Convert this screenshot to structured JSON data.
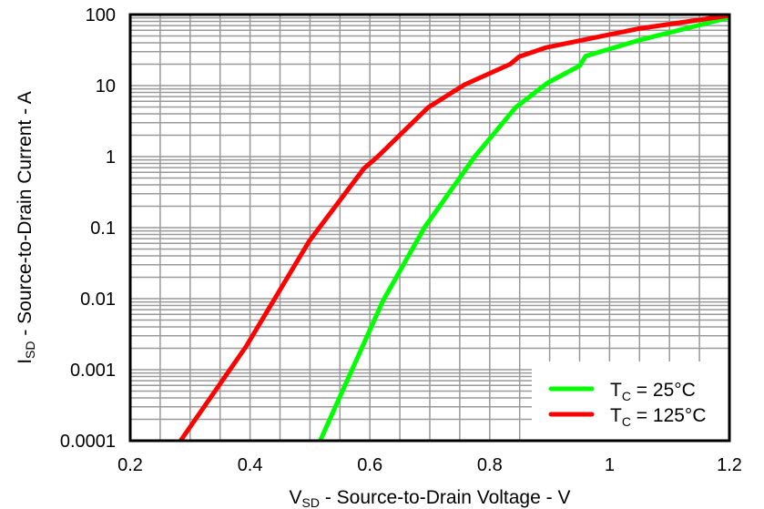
{
  "chart_data": {
    "type": "line",
    "title": "",
    "xlabel": {
      "main": "V",
      "sub": "SD",
      "rest": " - Source-to-Drain Voltage - V"
    },
    "ylabel": {
      "main": "I",
      "sub": "SD",
      "rest": " - Source-to-Drain Current - A"
    },
    "xlim": [
      0.2,
      1.2
    ],
    "ylim": [
      0.0001,
      100
    ],
    "yscale": "log",
    "grid": true,
    "legend_position": "bottom-right",
    "x_ticks": [
      "0.2",
      "0.4",
      "0.6",
      "0.8",
      "1",
      "1.2"
    ],
    "x_tick_values": [
      0.2,
      0.4,
      0.6,
      0.8,
      1.0,
      1.2
    ],
    "y_ticks": [
      "100",
      "10",
      "1",
      "0.1",
      "0.01",
      "0.001",
      "0.0001"
    ],
    "y_tick_values": [
      100,
      10,
      1,
      0.1,
      0.01,
      0.001,
      0.0001
    ],
    "series": [
      {
        "name": {
          "main": "T",
          "sub": "C",
          "rest": " = 25°C"
        },
        "color": "#00ff00",
        "x": [
          0.517,
          0.622,
          0.691,
          0.775,
          0.843,
          0.897,
          0.95,
          0.96,
          1.047,
          1.2
        ],
        "y": [
          0.0001,
          0.0094,
          0.1,
          1.0,
          4.9,
          11,
          19,
          26,
          43,
          91
        ]
      },
      {
        "name": {
          "main": "T",
          "sub": "C",
          "rest": " = 125°C"
        },
        "color": "#ff0000",
        "x": [
          0.284,
          0.393,
          0.499,
          0.59,
          0.613,
          0.697,
          0.758,
          0.834,
          0.849,
          0.895,
          1.047,
          1.2
        ],
        "y": [
          0.0001,
          0.0021,
          0.065,
          0.68,
          1.0,
          4.9,
          10.3,
          20,
          25.5,
          34.5,
          63,
          97
        ]
      }
    ]
  }
}
